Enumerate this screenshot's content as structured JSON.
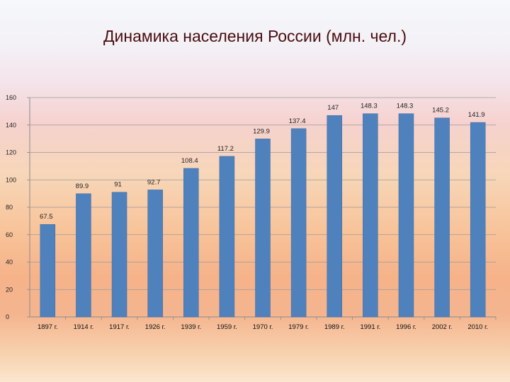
{
  "title": "Динамика населения России (млн. чел.)",
  "colors": {
    "bar": "#4f81bd",
    "bar_edge": "#3d6aa3",
    "grid": "#9a9a9a",
    "axis": "#8a8a8a"
  },
  "chart_data": {
    "type": "bar",
    "title": "Динамика населения России (млн. чел.)",
    "xlabel": "",
    "ylabel": "",
    "ylim": [
      0,
      160
    ],
    "yticks": [
      0,
      20,
      40,
      60,
      80,
      100,
      120,
      140,
      160
    ],
    "grid": true,
    "legend": "none",
    "categories": [
      "1897 г.",
      "1914 г.",
      "1917 г.",
      "1926 г.",
      "1939 г.",
      "1959 г.",
      "1970 г.",
      "1979 г.",
      "1989 г.",
      "1991 г.",
      "1996 г.",
      "2002 г.",
      "2010 г."
    ],
    "values": [
      67.5,
      89.9,
      91,
      92.7,
      108.4,
      117.2,
      129.9,
      137.4,
      147,
      148.3,
      148.3,
      145.2,
      141.9
    ],
    "data_labels": [
      "67.5",
      "89.9",
      "91",
      "92.7",
      "108.4",
      "117.2",
      "129.9",
      "137.4",
      "147",
      "148.3",
      "148.3",
      "145.2",
      "141.9"
    ]
  }
}
